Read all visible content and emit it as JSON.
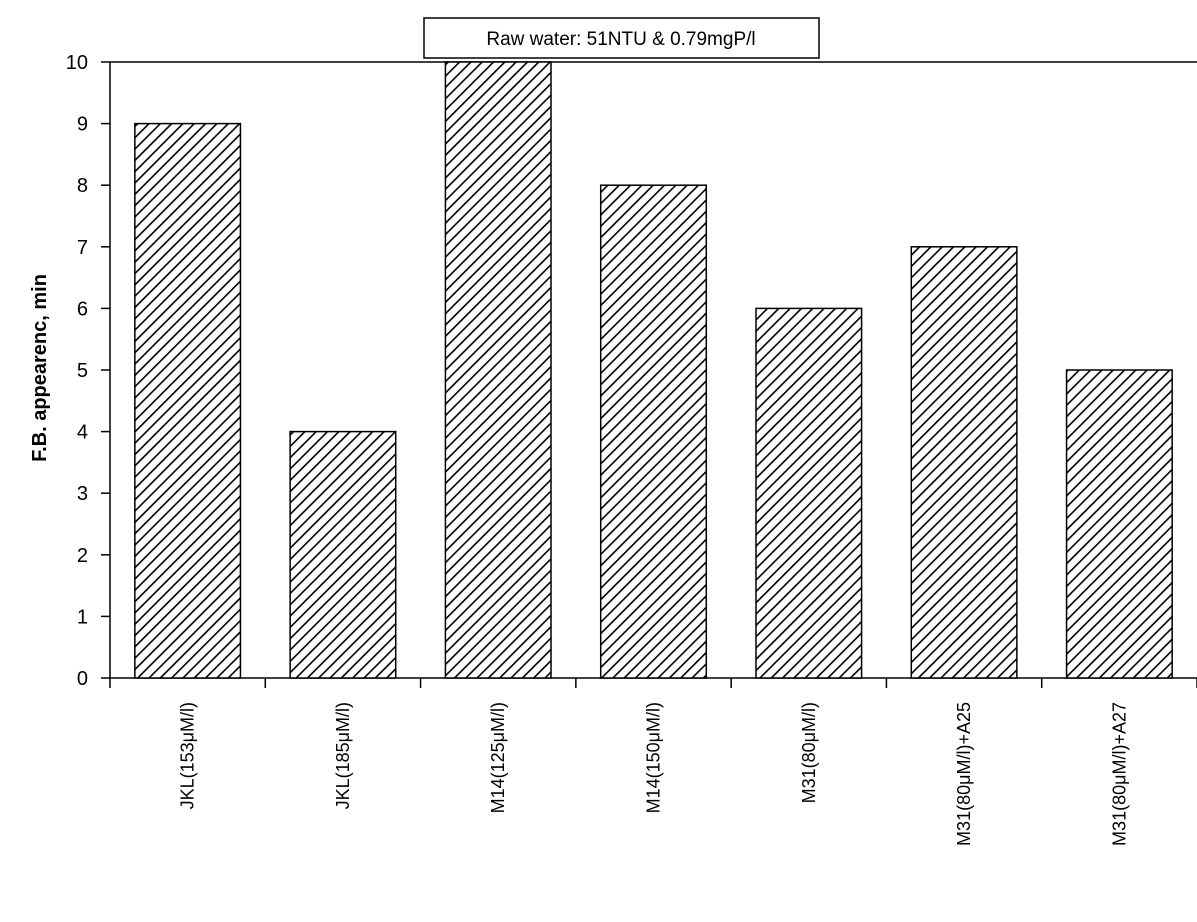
{
  "chart_data": {
    "type": "bar",
    "title": "Raw water: 51NTU & 0.79mgP/l",
    "xlabel": "",
    "ylabel": "F.B. appearenc, min",
    "ylim": [
      0,
      10
    ],
    "yticks": [
      0,
      1,
      2,
      3,
      4,
      5,
      6,
      7,
      8,
      9,
      10
    ],
    "categories": [
      "JKL(153μM/l)",
      "JKL(185μM/l)",
      "M14(125μM/l)",
      "M14(150μM/l)",
      "M31(80μM/l)",
      "M31(80μM/l)+A25",
      "M31(80μM/l)+A27"
    ],
    "values": [
      9,
      4,
      10,
      8,
      6,
      7,
      5
    ],
    "bar_fill": "diagonal-hatch",
    "bar_color": "#000000",
    "legend": "none",
    "grid": false
  }
}
